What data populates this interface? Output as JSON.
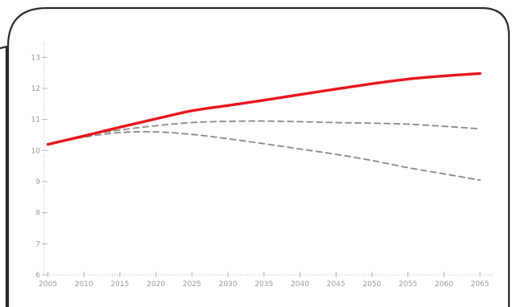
{
  "chart_data": {
    "type": "line",
    "title": "",
    "xlabel": "",
    "ylabel": "",
    "x": [
      2005,
      2010,
      2015,
      2020,
      2025,
      2030,
      2035,
      2040,
      2045,
      2050,
      2055,
      2060,
      2065
    ],
    "xticks": [
      "2005",
      "2010",
      "2015",
      "2020",
      "2025",
      "2030",
      "2035",
      "2040",
      "2045",
      "2050",
      "2055",
      "2060",
      "2065"
    ],
    "yticks": [
      "6",
      "7",
      "8",
      "9",
      "10",
      "11",
      "12",
      "13"
    ],
    "ylim": [
      6,
      13.5
    ],
    "xlim": [
      2004.5,
      2066
    ],
    "grid": false,
    "legend": "none",
    "series": [
      {
        "style": "solid",
        "color": "#e8161c",
        "values": [
          10.2,
          10.47,
          10.75,
          11.02,
          11.28,
          11.45,
          11.62,
          11.8,
          11.98,
          12.15,
          12.3,
          12.4,
          12.48
        ]
      },
      {
        "style": "dashed",
        "color": "#8a8a8a",
        "values": [
          10.2,
          10.48,
          10.66,
          10.8,
          10.9,
          10.94,
          10.95,
          10.93,
          10.9,
          10.88,
          10.85,
          10.78,
          10.7
        ]
      },
      {
        "style": "dashed",
        "color": "#8a8a8a",
        "values": [
          10.2,
          10.43,
          10.58,
          10.6,
          10.52,
          10.38,
          10.22,
          10.05,
          9.88,
          9.68,
          9.45,
          9.25,
          9.05
        ]
      }
    ]
  }
}
